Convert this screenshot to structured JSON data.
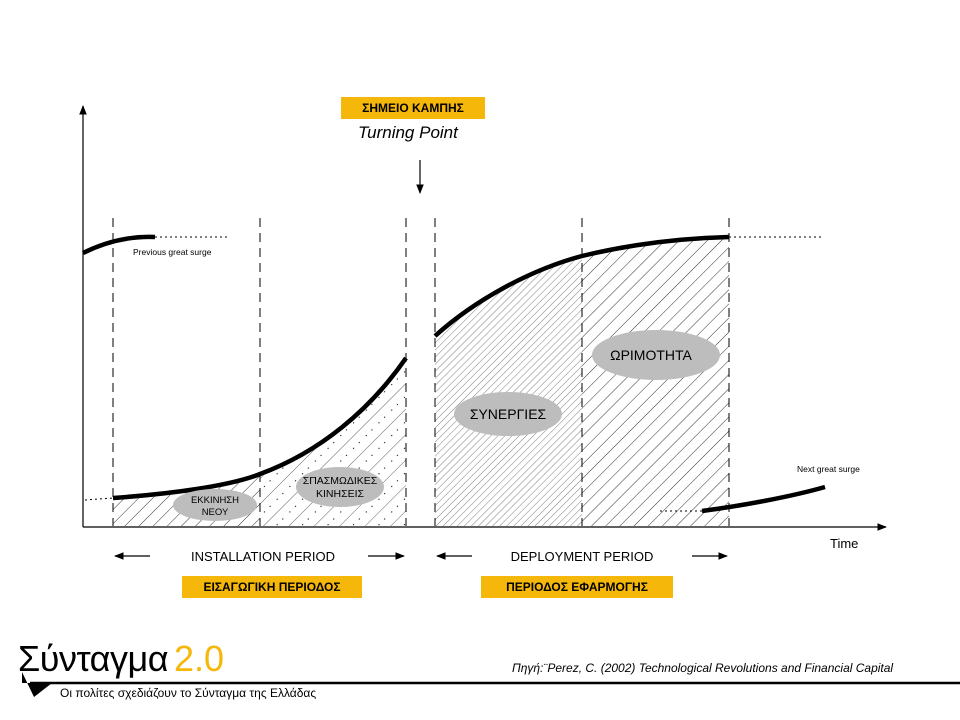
{
  "turning_point": {
    "greek": "ΣΗΜΕΙΟ ΚΑΜΠΗΣ",
    "english": "Turning Point"
  },
  "curve_labels": {
    "previous_surge": "Previous great surge",
    "next_surge": "Next great surge"
  },
  "axis": {
    "x_label": "Time"
  },
  "phases": {
    "irruption": [
      "ΕΚΚΙΝΗΣΗ",
      "ΝΕΟΥ"
    ],
    "frenzy": [
      "ΣΠΑΣΜΩΔΙΚΕΣ",
      "ΚΙΝΗΣΕΙΣ"
    ],
    "synergy": "ΣΥΝΕΡΓΙΕΣ",
    "maturity": "ΩΡΙΜΟΤΗΤΑ"
  },
  "periods": {
    "installation_en": "INSTALLATION PERIOD",
    "deployment_en": "DEPLOYMENT PERIOD",
    "installation_gr": "ΕΙΣΑΓΩΓΙΚΗ ΠΕΡΙΟΔΟΣ",
    "deployment_gr": "ΠΕΡΙΟΔΟΣ ΕΦΑΡΜΟΓΗΣ"
  },
  "footer": {
    "brand": "Σύνταγμα",
    "version": "2.0",
    "tagline": "Οι πολίτες σχεδιάζουν το Σύνταγμα της Ελλάδας",
    "source": "Πηγή:¨Perez, C. (2002) Technological Revolutions and Financial Capital"
  },
  "colors": {
    "accent": "#f5b70a",
    "ellipse": "#bdbdbd",
    "line": "#000000"
  }
}
